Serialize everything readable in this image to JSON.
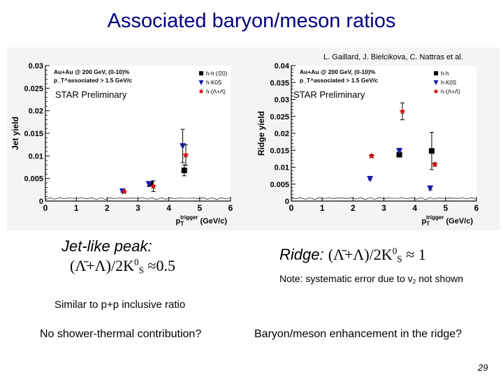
{
  "slide": {
    "title": "Associated baryon/meson ratios",
    "credit": "L. Gaillard, J. Bielcikova, C. Nattras et al.",
    "page_number": "29"
  },
  "text": {
    "jet_heading": "Jet-like peak:",
    "jet_formula_prefix": "(Λ̄+Λ)/2K",
    "jet_formula_sup": "0",
    "jet_formula_sub": "S",
    "jet_formula_suffix": " ≈0.5",
    "ridge_heading": "Ridge: ",
    "ridge_formula_prefix": "(Λ̄+Λ)/2K",
    "ridge_formula_sup": "0",
    "ridge_formula_sub": "S",
    "ridge_formula_suffix": " ≈ 1",
    "note_prefix": "Note: systematic error due to v",
    "note_sub": "2",
    "note_suffix": " not shown",
    "similar": "Similar to p+p inclusive ratio",
    "question_left": "No shower-thermal contribution?",
    "question_right": "Baryon/meson enhancement in the ridge?"
  },
  "colors": {
    "title": "#000080",
    "hh": "#000000",
    "hK0s": "#1a1ab0",
    "hLambda": "#cc1111",
    "hist": "#2a2a2a"
  },
  "chart_data": [
    {
      "type": "scatter",
      "ylabel": "Jet yield",
      "xlabel": "p_T^trigger (GeV/c)",
      "xlim": [
        0,
        6
      ],
      "ylim": [
        0,
        0.03
      ],
      "xticks": [
        0,
        1,
        2,
        3,
        4,
        5,
        6
      ],
      "yticks": [
        0,
        0.005,
        0.01,
        0.015,
        0.02,
        0.025,
        0.03
      ],
      "ytick_labels": [
        "0",
        "0.005",
        "0.01",
        "0.015",
        "0.02",
        "0.025",
        "0.03"
      ],
      "preliminary_label": "STAR Preliminary",
      "legend_header": [
        "Au+Au @ 200 GeV, (0-10)%",
        "p_T^associated > 1.5 GeV/c"
      ],
      "legend_position": "top-right",
      "series": [
        {
          "name": "h-h (/20)",
          "marker": "square",
          "color": "#000000",
          "x": [
            3.4,
            4.5
          ],
          "y": [
            0.0038,
            0.0068
          ],
          "err": [
            0.0005,
            0.0012
          ]
        },
        {
          "name": "h-K0S",
          "marker": "triangle-down",
          "color": "#1a1ab0",
          "x": [
            2.5,
            3.35,
            4.45
          ],
          "y": [
            0.0022,
            0.0038,
            0.0122
          ],
          "err": [
            0.0002,
            0.0005,
            0.0037
          ]
        },
        {
          "name": "h-(Λ+Λ̄)",
          "marker": "star",
          "color": "#cc1111",
          "x": [
            2.55,
            3.5,
            4.55
          ],
          "y": [
            0.0021,
            0.0033,
            0.0102
          ],
          "err": [
            0.0002,
            0.0012,
            0.0023
          ]
        }
      ]
    },
    {
      "type": "scatter",
      "ylabel": "Ridge yield",
      "xlabel": "p_T^trigger (GeV/c)",
      "xlim": [
        0,
        6
      ],
      "ylim": [
        0,
        0.04
      ],
      "xticks": [
        0,
        1,
        2,
        3,
        4,
        5,
        6
      ],
      "yticks": [
        0,
        0.005,
        0.01,
        0.015,
        0.02,
        0.025,
        0.03,
        0.035,
        0.04
      ],
      "ytick_labels": [
        "0",
        "0.005",
        "0.01",
        "0.015",
        "0.02",
        "0.025",
        "0.03",
        "0.035",
        "0.04"
      ],
      "preliminary_label": "STAR Preliminary",
      "legend_header": [
        "Au+Au @ 200 GeV, (0-10)%",
        "p_T^associated > 1.5 GeV/c"
      ],
      "legend_position": "top-right",
      "series": [
        {
          "name": "h-h",
          "marker": "square",
          "color": "#000000",
          "x": [
            3.5,
            4.55
          ],
          "y": [
            0.0137,
            0.0148
          ],
          "err": [
            0.0005,
            0.0055
          ]
        },
        {
          "name": "h-K0S",
          "marker": "triangle-down",
          "color": "#1a1ab0",
          "x": [
            2.55,
            3.5,
            4.5
          ],
          "y": [
            0.0066,
            0.0148,
            0.0038
          ],
          "err": [
            0.0003,
            0.0008,
            0.0005
          ]
        },
        {
          "name": "h-(Λ+Λ̄)",
          "marker": "star",
          "color": "#cc1111",
          "x": [
            2.6,
            3.6,
            4.65
          ],
          "y": [
            0.0133,
            0.0265,
            0.0108
          ],
          "err": [
            0.0004,
            0.0025,
            0.0005
          ]
        }
      ]
    }
  ]
}
